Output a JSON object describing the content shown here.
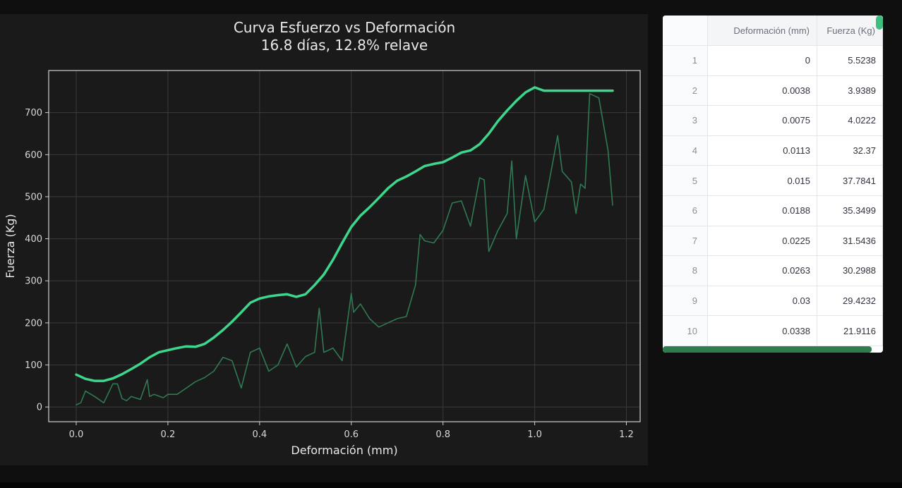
{
  "chart_data": {
    "type": "line",
    "title": "Curva Esfuerzo vs Deformación",
    "subtitle": "16.8 días, 12.8% relave",
    "xlabel": "Deformación (mm)",
    "ylabel": "Fuerza (Kg)",
    "xlim": [
      -0.06,
      1.23
    ],
    "ylim": [
      -35,
      800
    ],
    "xticks": [
      "0.0",
      "0.2",
      "0.4",
      "0.6",
      "0.8",
      "1.0",
      "1.2"
    ],
    "xtick_values": [
      0,
      0.2,
      0.4,
      0.6,
      0.8,
      1.0,
      1.2
    ],
    "yticks": [
      "0",
      "100",
      "200",
      "300",
      "400",
      "500",
      "600",
      "700"
    ],
    "ytick_values": [
      0,
      100,
      200,
      300,
      400,
      500,
      600,
      700
    ],
    "grid": true,
    "series": [
      {
        "color": "#3dd68c",
        "x": [
          0,
          0.02,
          0.04,
          0.06,
          0.08,
          0.1,
          0.12,
          0.14,
          0.16,
          0.18,
          0.2,
          0.22,
          0.24,
          0.26,
          0.28,
          0.3,
          0.32,
          0.34,
          0.36,
          0.38,
          0.4,
          0.42,
          0.44,
          0.46,
          0.48,
          0.5,
          0.52,
          0.54,
          0.56,
          0.58,
          0.6,
          0.62,
          0.64,
          0.66,
          0.68,
          0.7,
          0.72,
          0.74,
          0.76,
          0.78,
          0.8,
          0.82,
          0.84,
          0.86,
          0.88,
          0.9,
          0.92,
          0.94,
          0.96,
          0.98,
          1.0,
          1.02,
          1.04,
          1.06,
          1.08,
          1.1,
          1.12,
          1.14,
          1.17
        ],
        "y": [
          77,
          67,
          62,
          62,
          68,
          78,
          90,
          103,
          118,
          130,
          135,
          140,
          144,
          143,
          150,
          165,
          183,
          203,
          225,
          248,
          258,
          263,
          266,
          268,
          262,
          268,
          290,
          315,
          350,
          390,
          428,
          455,
          475,
          497,
          520,
          538,
          548,
          560,
          573,
          578,
          582,
          593,
          605,
          610,
          625,
          650,
          680,
          705,
          728,
          748,
          760,
          752,
          752,
          752,
          752,
          752,
          752,
          752,
          752
        ]
      },
      {
        "color": "#2f7a52",
        "x": [
          0,
          0.01,
          0.02,
          0.04,
          0.06,
          0.08,
          0.09,
          0.1,
          0.11,
          0.12,
          0.14,
          0.155,
          0.16,
          0.17,
          0.19,
          0.2,
          0.22,
          0.24,
          0.26,
          0.28,
          0.3,
          0.32,
          0.34,
          0.36,
          0.38,
          0.4,
          0.42,
          0.44,
          0.46,
          0.48,
          0.5,
          0.52,
          0.53,
          0.54,
          0.56,
          0.58,
          0.6,
          0.605,
          0.62,
          0.64,
          0.66,
          0.68,
          0.7,
          0.72,
          0.74,
          0.75,
          0.76,
          0.78,
          0.8,
          0.82,
          0.84,
          0.86,
          0.88,
          0.89,
          0.9,
          0.92,
          0.94,
          0.95,
          0.96,
          0.98,
          1.0,
          1.02,
          1.04,
          1.05,
          1.06,
          1.08,
          1.09,
          1.1,
          1.11,
          1.12,
          1.14,
          1.16,
          1.17
        ],
        "y": [
          5,
          10,
          38,
          25,
          10,
          55,
          55,
          20,
          15,
          25,
          18,
          65,
          25,
          30,
          22,
          30,
          30,
          45,
          60,
          70,
          85,
          118,
          110,
          45,
          130,
          140,
          85,
          100,
          150,
          95,
          120,
          130,
          235,
          130,
          140,
          110,
          270,
          225,
          245,
          210,
          190,
          200,
          210,
          215,
          290,
          410,
          395,
          390,
          420,
          485,
          490,
          430,
          545,
          540,
          370,
          420,
          460,
          585,
          400,
          550,
          440,
          470,
          585,
          645,
          560,
          535,
          460,
          530,
          520,
          745,
          735,
          610,
          480
        ]
      }
    ]
  },
  "table": {
    "columns": [
      "Deformación (mm)",
      "Fuerza (Kg)"
    ],
    "rows": [
      {
        "idx": "1",
        "d": "0",
        "f": "5.5238"
      },
      {
        "idx": "2",
        "d": "0.0038",
        "f": "3.9389"
      },
      {
        "idx": "3",
        "d": "0.0075",
        "f": "4.0222"
      },
      {
        "idx": "4",
        "d": "0.0113",
        "f": "32.37"
      },
      {
        "idx": "5",
        "d": "0.015",
        "f": "37.7841"
      },
      {
        "idx": "6",
        "d": "0.0188",
        "f": "35.3499"
      },
      {
        "idx": "7",
        "d": "0.0225",
        "f": "31.5436"
      },
      {
        "idx": "8",
        "d": "0.0263",
        "f": "30.2988"
      },
      {
        "idx": "9",
        "d": "0.03",
        "f": "29.4232"
      },
      {
        "idx": "10",
        "d": "0.0338",
        "f": "21.9116"
      }
    ]
  }
}
